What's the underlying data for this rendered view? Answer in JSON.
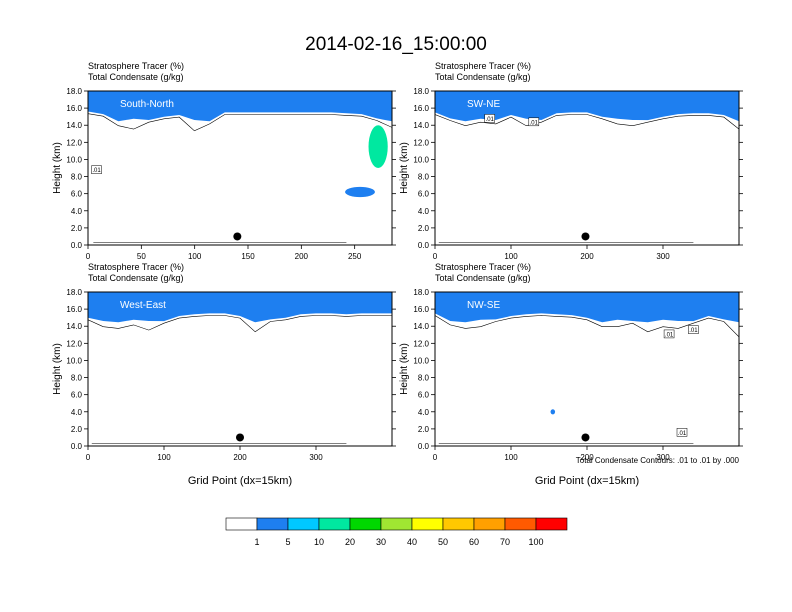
{
  "figure": {
    "title": "2014-02-16_15:00:00",
    "note": "Total Condensate Contours: .01 to .01 by .000"
  },
  "colorbar": {
    "colors": [
      "#ffffff",
      "#1e7ff0",
      "#00c8ff",
      "#00e8a0",
      "#00d800",
      "#a0e632",
      "#ffff00",
      "#ffc800",
      "#ffa000",
      "#ff5a00",
      "#ff0000"
    ],
    "labels": [
      "1",
      "5",
      "10",
      "20",
      "30",
      "40",
      "50",
      "60",
      "70",
      "100"
    ]
  },
  "chart_data": [
    {
      "type": "heatmap",
      "label": "South-North",
      "title_line1": "Stratosphere Tracer   (%)",
      "title_line2": "Total Condensate   (g/kg)",
      "xlabel": "",
      "ylabel": "Height (km)",
      "xlim": [
        0,
        285
      ],
      "ylim": [
        0,
        18
      ],
      "xticks": [
        0,
        50,
        100,
        150,
        200,
        250
      ],
      "yticks": [
        0.0,
        2.0,
        4.0,
        6.0,
        8.0,
        10.0,
        12.0,
        14.0,
        16.0,
        18.0
      ],
      "ytick_labels": [
        "0.0",
        "2.0",
        "4.0",
        "6.0",
        "8.0",
        "10.0",
        "12.0",
        "14.0",
        "16.0",
        "18.0"
      ],
      "tracer_base_km": [
        15.6,
        15.3,
        14.2,
        13.8,
        14.6,
        15.0,
        15.2,
        13.6,
        14.4,
        15.5,
        15.5,
        15.5,
        15.5,
        15.5,
        15.5,
        15.5,
        15.5,
        15.4,
        15.3,
        14.8,
        14.0
      ],
      "patches": [
        {
          "x": 255,
          "y": 6.2,
          "rx": 14,
          "ry": 0.6,
          "color": "#1e7ff0"
        },
        {
          "x": 272,
          "y": 11.5,
          "rx": 9,
          "ry": 2.5,
          "color": "#00e8a0"
        }
      ],
      "contour_labels": [
        {
          "x": 8,
          "y": 8.8,
          "text": ".01"
        }
      ],
      "marker": {
        "x": 140,
        "y": 1.0
      }
    },
    {
      "type": "heatmap",
      "label": "SW-NE",
      "title_line1": "Stratosphere Tracer   (%)",
      "title_line2": "Total Condensate   (g/kg)",
      "xlabel": "",
      "ylabel": "Height (km)",
      "xlim": [
        0,
        400
      ],
      "ylim": [
        0,
        18
      ],
      "xticks": [
        0,
        100,
        200,
        300
      ],
      "yticks": [
        0.0,
        2.0,
        4.0,
        6.0,
        8.0,
        10.0,
        12.0,
        14.0,
        16.0,
        18.0
      ],
      "ytick_labels": [
        "0.0",
        "2.0",
        "4.0",
        "6.0",
        "8.0",
        "10.0",
        "12.0",
        "14.0",
        "16.0",
        "18.0"
      ],
      "tracer_base_km": [
        15.5,
        14.8,
        14.2,
        14.6,
        14.4,
        15.2,
        14.2,
        14.6,
        15.4,
        15.5,
        15.5,
        15.0,
        14.4,
        14.2,
        14.6,
        15.0,
        15.3,
        15.4,
        15.4,
        15.2,
        13.8
      ],
      "patches": [],
      "contour_labels": [
        {
          "x": 72,
          "y": 14.8,
          "text": ".01"
        },
        {
          "x": 130,
          "y": 14.4,
          "text": ".01"
        }
      ],
      "marker": {
        "x": 198,
        "y": 1.0
      }
    },
    {
      "type": "heatmap",
      "label": "West-East",
      "title_line1": "Stratosphere Tracer   (%)",
      "title_line2": "Total Condensate   (g/kg)",
      "xlabel": "Grid Point (dx=15km)",
      "ylabel": "Height (km)",
      "xlim": [
        0,
        400
      ],
      "ylim": [
        0,
        18
      ],
      "xticks": [
        0,
        100,
        200,
        300
      ],
      "yticks": [
        0.0,
        2.0,
        4.0,
        6.0,
        8.0,
        10.0,
        12.0,
        14.0,
        16.0,
        18.0
      ],
      "ytick_labels": [
        "0.0",
        "2.0",
        "4.0",
        "6.0",
        "8.0",
        "10.0",
        "12.0",
        "14.0",
        "16.0",
        "18.0"
      ],
      "tracer_base_km": [
        15.0,
        14.2,
        14.0,
        14.4,
        13.8,
        14.6,
        15.2,
        15.4,
        15.5,
        15.5,
        15.2,
        13.6,
        14.8,
        15.0,
        15.4,
        15.5,
        15.5,
        15.4,
        15.5,
        15.5,
        15.5
      ],
      "patches": [],
      "contour_labels": [],
      "marker": {
        "x": 200,
        "y": 1.0
      }
    },
    {
      "type": "heatmap",
      "label": "NW-SE",
      "title_line1": "Stratosphere Tracer   (%)",
      "title_line2": "Total Condensate   (g/kg)",
      "xlabel": "Grid Point (dx=15km)",
      "ylabel": "Height (km)",
      "xlim": [
        0,
        400
      ],
      "ylim": [
        0,
        18
      ],
      "xticks": [
        0,
        100,
        200,
        300
      ],
      "yticks": [
        0.0,
        2.0,
        4.0,
        6.0,
        8.0,
        10.0,
        12.0,
        14.0,
        16.0,
        18.0
      ],
      "ytick_labels": [
        "0.0",
        "2.0",
        "4.0",
        "6.0",
        "8.0",
        "10.0",
        "12.0",
        "14.0",
        "16.0",
        "18.0"
      ],
      "tracer_base_km": [
        15.5,
        14.4,
        14.0,
        14.2,
        14.8,
        15.2,
        15.4,
        15.5,
        15.4,
        15.3,
        15.0,
        14.2,
        14.2,
        14.6,
        13.6,
        14.2,
        14.0,
        14.6,
        15.2,
        14.8,
        13.0
      ],
      "patches": [
        {
          "x": 155,
          "y": 4.0,
          "rx": 3,
          "ry": 0.3,
          "color": "#1e7ff0"
        }
      ],
      "contour_labels": [
        {
          "x": 308,
          "y": 13.1,
          "text": ".01"
        },
        {
          "x": 340,
          "y": 13.6,
          "text": ".01"
        },
        {
          "x": 325,
          "y": 1.6,
          "text": ".01"
        }
      ],
      "marker": {
        "x": 198,
        "y": 1.0
      }
    }
  ]
}
